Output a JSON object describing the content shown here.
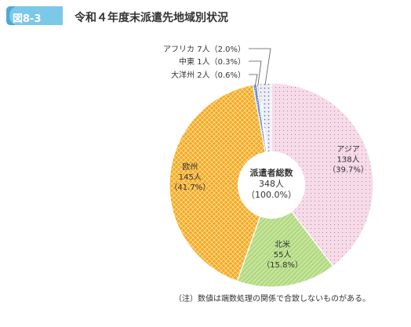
{
  "figure": {
    "number": "図8-3",
    "title": "令和４年度末派遣先地域別状況",
    "note": "（注）数値は端数処理の関係で合致しないものがある。"
  },
  "colors": {
    "badge": "#7cc8e8",
    "asia": "#f6dce8",
    "north_america": "#b7de86",
    "europe": "#f3a922",
    "oceania": "#6f8fd6",
    "middle_east": "#c7c7c7",
    "africa": "#e9e9ee"
  },
  "chart_data": {
    "type": "pie",
    "center_label": [
      "派遣者総数",
      "348人",
      "（100.0%）"
    ],
    "slices": [
      {
        "name": "アジア",
        "count_label": "138人",
        "pct_label": "（39.7%）",
        "value": 39.7,
        "color_key": "asia"
      },
      {
        "name": "北米",
        "count_label": "55人",
        "pct_label": "（15.8%）",
        "value": 15.8,
        "color_key": "north_america"
      },
      {
        "name": "欧州",
        "count_label": "145人",
        "pct_label": "（41.7%）",
        "value": 41.7,
        "color_key": "europe"
      },
      {
        "name": "大洋州",
        "count_label": "2人",
        "pct_label": "（0.6%）",
        "value": 0.6,
        "color_key": "oceania"
      },
      {
        "name": "中東",
        "count_label": "1人",
        "pct_label": "（0.3%）",
        "value": 0.3,
        "color_key": "middle_east"
      },
      {
        "name": "アフリカ",
        "count_label": "7人",
        "pct_label": "（2.0%）",
        "value": 2.0,
        "color_key": "africa"
      }
    ],
    "outside_labels": [
      "アフリカ 7人（2.0%）",
      "中東 1人（0.3%）",
      "大洋州 2人（0.6%）"
    ]
  }
}
